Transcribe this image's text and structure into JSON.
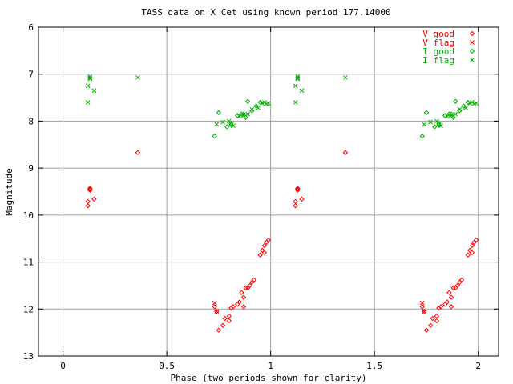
{
  "chart_data": {
    "type": "scatter",
    "title": "TASS data on X Cet  using known period 177.14000",
    "xlabel": "Phase (two periods shown for clarity)",
    "ylabel": "Magnitude",
    "xlim": [
      -0.1,
      2.1
    ],
    "ylim": [
      6,
      13
    ],
    "y_inverted": true,
    "grid": true,
    "legend_position": "top-right",
    "x_ticks": [
      0,
      0.5,
      1,
      1.5,
      2
    ],
    "x_tick_labels": [
      "0",
      "0.5",
      "1",
      "1.5",
      "2"
    ],
    "y_ticks": [
      6,
      7,
      8,
      9,
      10,
      11,
      12,
      13
    ],
    "y_tick_labels": [
      "6",
      "7",
      "8",
      "9",
      "10",
      "11",
      "12",
      "13"
    ],
    "colors": {
      "V": "#ff0000",
      "I": "#00b000"
    },
    "series": [
      {
        "name": "V good",
        "marker": "diamond",
        "color": "#ff0000",
        "points": [
          [
            0.12,
            9.71
          ],
          [
            0.12,
            9.8
          ],
          [
            0.13,
            9.43
          ],
          [
            0.13,
            9.45
          ],
          [
            0.13,
            9.47
          ],
          [
            0.15,
            9.66
          ],
          [
            0.36,
            8.67
          ],
          [
            0.73,
            11.95
          ],
          [
            0.74,
            12.05
          ],
          [
            0.75,
            12.45
          ],
          [
            0.77,
            12.35
          ],
          [
            0.78,
            12.2
          ],
          [
            0.8,
            12.15
          ],
          [
            0.8,
            12.25
          ],
          [
            0.81,
            11.98
          ],
          [
            0.82,
            11.95
          ],
          [
            0.84,
            11.9
          ],
          [
            0.85,
            11.85
          ],
          [
            0.86,
            11.65
          ],
          [
            0.87,
            11.95
          ],
          [
            0.87,
            11.75
          ],
          [
            0.88,
            11.55
          ],
          [
            0.89,
            11.55
          ],
          [
            0.9,
            11.5
          ],
          [
            0.91,
            11.43
          ],
          [
            0.92,
            11.38
          ],
          [
            0.95,
            10.85
          ],
          [
            0.96,
            10.75
          ],
          [
            0.97,
            10.65
          ],
          [
            0.97,
            10.8
          ],
          [
            0.98,
            10.58
          ],
          [
            0.99,
            10.53
          ],
          [
            1.12,
            9.71
          ],
          [
            1.12,
            9.8
          ],
          [
            1.13,
            9.43
          ],
          [
            1.13,
            9.45
          ],
          [
            1.13,
            9.47
          ],
          [
            1.15,
            9.66
          ],
          [
            1.36,
            8.67
          ],
          [
            1.73,
            11.95
          ],
          [
            1.74,
            12.05
          ],
          [
            1.75,
            12.45
          ],
          [
            1.77,
            12.35
          ],
          [
            1.78,
            12.2
          ],
          [
            1.8,
            12.15
          ],
          [
            1.8,
            12.25
          ],
          [
            1.81,
            11.98
          ],
          [
            1.82,
            11.95
          ],
          [
            1.84,
            11.9
          ],
          [
            1.85,
            11.85
          ],
          [
            1.86,
            11.65
          ],
          [
            1.87,
            11.95
          ],
          [
            1.87,
            11.75
          ],
          [
            1.88,
            11.55
          ],
          [
            1.89,
            11.55
          ],
          [
            1.9,
            11.5
          ],
          [
            1.91,
            11.43
          ],
          [
            1.92,
            11.38
          ],
          [
            1.95,
            10.85
          ],
          [
            1.96,
            10.75
          ],
          [
            1.97,
            10.65
          ],
          [
            1.97,
            10.8
          ],
          [
            1.98,
            10.58
          ],
          [
            1.99,
            10.53
          ]
        ]
      },
      {
        "name": "V flag",
        "marker": "x",
        "color": "#ff0000",
        "points": [
          [
            0.73,
            11.87
          ],
          [
            0.74,
            12.05
          ],
          [
            1.73,
            11.87
          ],
          [
            1.74,
            12.05
          ]
        ]
      },
      {
        "name": "I good",
        "marker": "diamond",
        "color": "#00b000",
        "points": [
          [
            0.73,
            8.32
          ],
          [
            0.75,
            7.82
          ],
          [
            0.79,
            8.12
          ],
          [
            0.81,
            8.05
          ],
          [
            0.81,
            8.08
          ],
          [
            0.84,
            7.88
          ],
          [
            0.86,
            7.85
          ],
          [
            0.87,
            7.85
          ],
          [
            0.88,
            7.92
          ],
          [
            0.89,
            7.58
          ],
          [
            0.91,
            7.78
          ],
          [
            0.93,
            7.68
          ],
          [
            0.95,
            7.6
          ],
          [
            1.73,
            8.32
          ],
          [
            1.75,
            7.82
          ],
          [
            1.79,
            8.12
          ],
          [
            1.81,
            8.05
          ],
          [
            1.81,
            8.08
          ],
          [
            1.84,
            7.88
          ],
          [
            1.86,
            7.85
          ],
          [
            1.87,
            7.85
          ],
          [
            1.88,
            7.92
          ],
          [
            1.89,
            7.58
          ],
          [
            1.91,
            7.78
          ],
          [
            1.93,
            7.68
          ],
          [
            1.95,
            7.6
          ]
        ]
      },
      {
        "name": "I flag",
        "marker": "x",
        "color": "#00b000",
        "points": [
          [
            0.12,
            7.6
          ],
          [
            0.12,
            7.25
          ],
          [
            0.13,
            7.05
          ],
          [
            0.13,
            7.08
          ],
          [
            0.13,
            7.1
          ],
          [
            0.15,
            7.35
          ],
          [
            0.36,
            7.07
          ],
          [
            0.74,
            8.07
          ],
          [
            0.77,
            8.02
          ],
          [
            0.8,
            8.0
          ],
          [
            0.82,
            8.1
          ],
          [
            0.85,
            7.9
          ],
          [
            0.87,
            7.88
          ],
          [
            0.89,
            7.85
          ],
          [
            0.91,
            7.75
          ],
          [
            0.94,
            7.72
          ],
          [
            0.96,
            7.62
          ],
          [
            0.97,
            7.6
          ],
          [
            0.98,
            7.63
          ],
          [
            0.99,
            7.62
          ],
          [
            1.12,
            7.6
          ],
          [
            1.12,
            7.25
          ],
          [
            1.13,
            7.05
          ],
          [
            1.13,
            7.08
          ],
          [
            1.13,
            7.1
          ],
          [
            1.15,
            7.35
          ],
          [
            1.36,
            7.07
          ],
          [
            1.74,
            8.07
          ],
          [
            1.77,
            8.02
          ],
          [
            1.8,
            8.0
          ],
          [
            1.82,
            8.1
          ],
          [
            1.85,
            7.9
          ],
          [
            1.87,
            7.88
          ],
          [
            1.89,
            7.85
          ],
          [
            1.91,
            7.75
          ],
          [
            1.94,
            7.72
          ],
          [
            1.96,
            7.62
          ],
          [
            1.97,
            7.6
          ],
          [
            1.98,
            7.63
          ],
          [
            1.99,
            7.62
          ]
        ]
      }
    ]
  }
}
